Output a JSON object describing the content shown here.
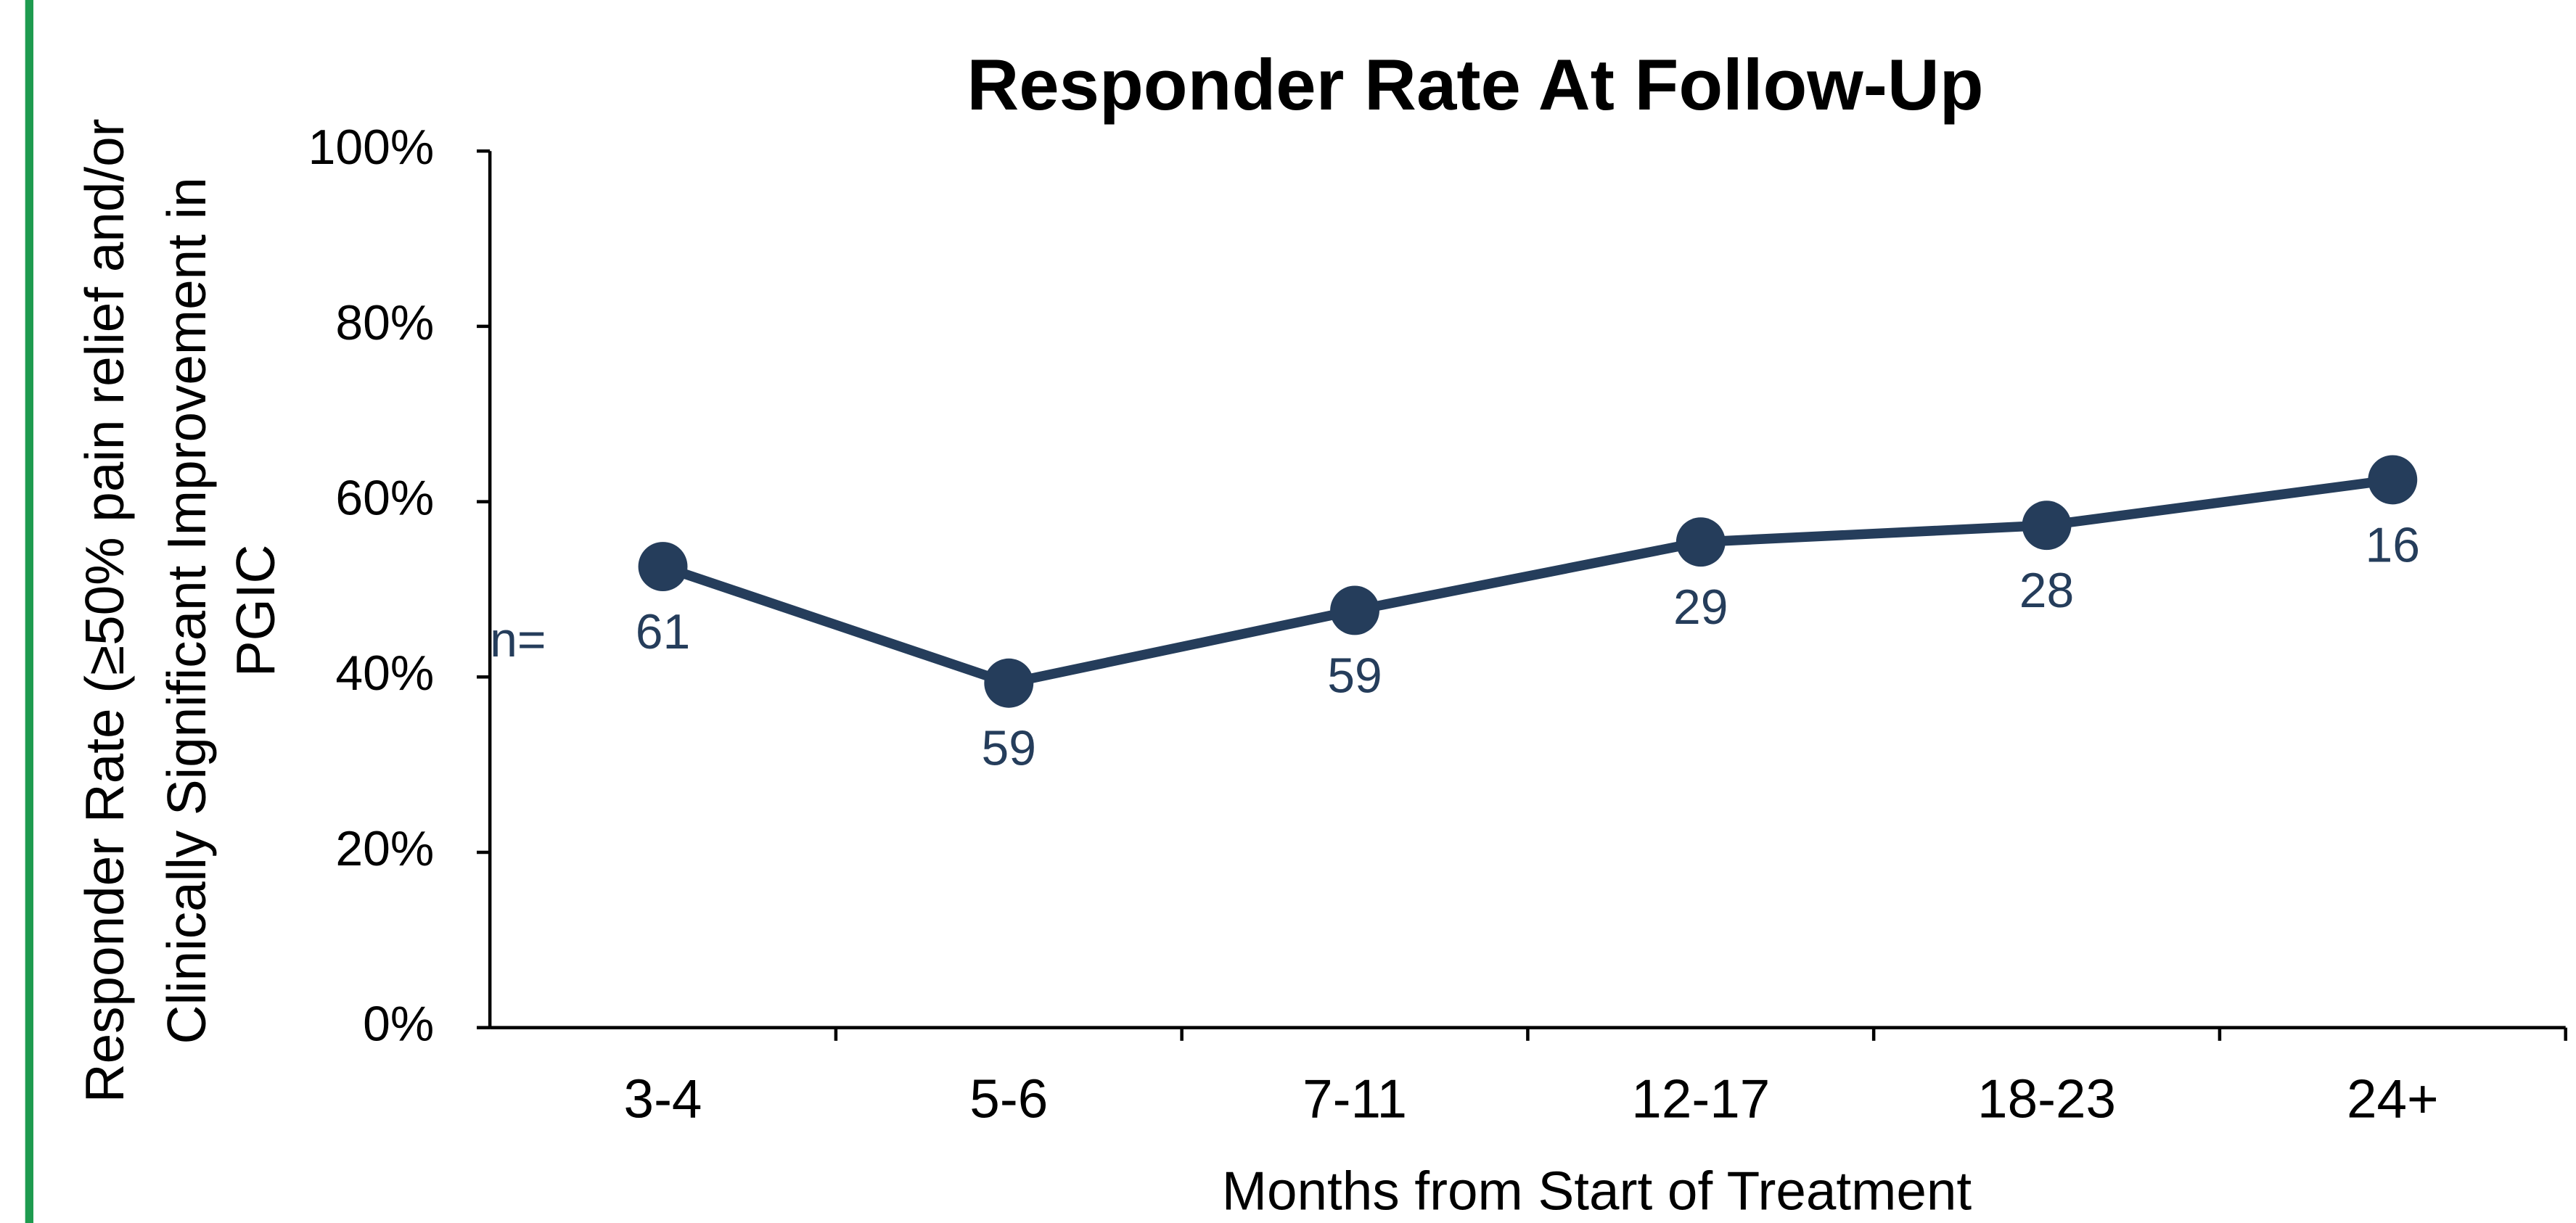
{
  "chart_data": {
    "type": "line",
    "title": "Responder Rate At Follow-Up",
    "ylabel": [
      "Responder Rate (≥50% pain relief and/or",
      "Clinically Significant Improvement in",
      "PGIC"
    ],
    "xlabel": "Months from Start of Treatment",
    "categories": [
      "3-4",
      "5-6",
      "7-11",
      "12-17",
      "18-23",
      "24+"
    ],
    "series": [
      {
        "name": "Responder Rate",
        "color": "#253d5b",
        "values": [
          52.6,
          39.3,
          47.6,
          55.4,
          57.3,
          62.5
        ]
      }
    ],
    "n_label": "n=",
    "n_values": [
      61,
      59,
      59,
      29,
      28,
      16
    ],
    "ylim": [
      0,
      100
    ],
    "yticks": [
      {
        "value": 0,
        "label": "0%"
      },
      {
        "value": 20,
        "label": "20%"
      },
      {
        "value": 40,
        "label": "40%"
      },
      {
        "value": 60,
        "label": "60%"
      },
      {
        "value": 80,
        "label": "80%"
      },
      {
        "value": 100,
        "label": "100%"
      }
    ]
  }
}
